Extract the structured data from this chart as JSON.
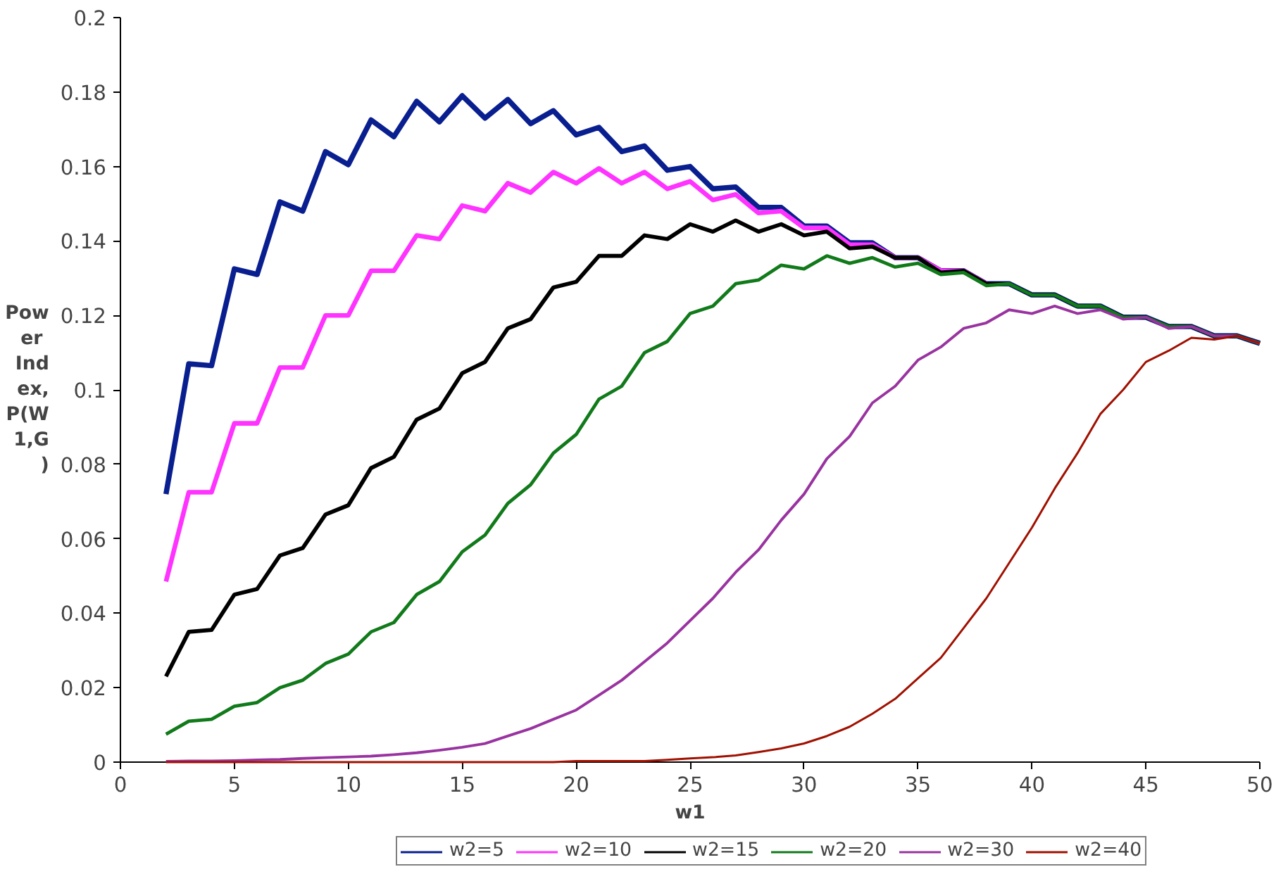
{
  "chart_data": {
    "type": "line",
    "xlabel": "w1",
    "ylabel": "Power Index, P(W1,G)",
    "x": [
      2,
      3,
      4,
      5,
      6,
      7,
      8,
      9,
      10,
      11,
      12,
      13,
      14,
      15,
      16,
      17,
      18,
      19,
      20,
      21,
      22,
      23,
      24,
      25,
      26,
      27,
      28,
      29,
      30,
      31,
      32,
      33,
      34,
      35,
      36,
      37,
      38,
      39,
      40,
      41,
      42,
      43,
      44,
      45,
      46,
      47,
      48,
      49,
      50
    ],
    "series": [
      {
        "name": "w2=5",
        "color": "#0a1f8f",
        "values": [
          0.072,
          0.107,
          0.1065,
          0.1325,
          0.131,
          0.1505,
          0.148,
          0.164,
          0.1605,
          0.1725,
          0.168,
          0.1775,
          0.172,
          0.179,
          0.173,
          0.178,
          0.1715,
          0.175,
          0.1685,
          0.1705,
          0.164,
          0.1655,
          0.159,
          0.16,
          0.154,
          0.1545,
          0.149,
          0.149,
          0.144,
          0.144,
          0.1395,
          0.1395,
          0.1355,
          0.1355,
          0.132,
          0.132,
          0.1285,
          0.1285,
          0.1255,
          0.1255,
          0.1225,
          0.1225,
          0.1195,
          0.1195,
          0.117,
          0.117,
          0.1145,
          0.1145,
          0.1125
        ]
      },
      {
        "name": "w2=10",
        "color": "#ff33ff",
        "values": [
          0.0485,
          0.0725,
          0.0725,
          0.091,
          0.091,
          0.106,
          0.106,
          0.12,
          0.12,
          0.132,
          0.132,
          0.1415,
          0.1405,
          0.1495,
          0.148,
          0.1555,
          0.153,
          0.1585,
          0.1555,
          0.1595,
          0.1555,
          0.1585,
          0.154,
          0.156,
          0.151,
          0.1525,
          0.1475,
          0.148,
          0.1435,
          0.1435,
          0.139,
          0.139,
          0.1355,
          0.1355,
          0.132,
          0.132,
          0.1285,
          null,
          null,
          null,
          null,
          null,
          null,
          null,
          null,
          null,
          null,
          null,
          null
        ]
      },
      {
        "name": "w2=15",
        "color": "#000000",
        "values": [
          0.023,
          0.035,
          0.0355,
          0.045,
          0.0465,
          0.0555,
          0.0575,
          0.0665,
          0.069,
          0.079,
          0.082,
          0.092,
          0.095,
          0.1045,
          0.1075,
          0.1165,
          0.119,
          0.1275,
          0.129,
          0.136,
          0.136,
          0.1415,
          0.1405,
          0.1445,
          0.1425,
          0.1455,
          0.1425,
          0.1445,
          0.1415,
          0.1425,
          0.138,
          0.1385,
          0.1355,
          0.1355,
          0.1315,
          0.132,
          0.1285,
          0.1285,
          0.1255,
          0.1255,
          0.1225,
          0.1225,
          0.1195,
          0.1195,
          0.117,
          0.117,
          0.1145,
          0.1145,
          0.1125
        ]
      },
      {
        "name": "w2=20",
        "color": "#117a1a",
        "values": [
          0.0075,
          0.011,
          0.0115,
          0.015,
          0.016,
          0.02,
          0.022,
          0.0265,
          0.029,
          0.035,
          0.0375,
          0.045,
          0.0485,
          0.0565,
          0.061,
          0.0695,
          0.0745,
          0.083,
          0.088,
          0.0975,
          0.101,
          0.11,
          0.113,
          0.1205,
          0.1225,
          0.1285,
          0.1295,
          0.1335,
          0.1325,
          0.136,
          0.134,
          0.1355,
          0.133,
          0.134,
          0.131,
          0.1315,
          0.128,
          0.1285,
          0.1255,
          0.1255,
          0.1225,
          0.1225,
          0.1195,
          0.1195,
          0.117,
          0.117,
          0.1145,
          0.1145,
          0.1125
        ]
      },
      {
        "name": "w2=30",
        "color": "#9933a0",
        "values": [
          0.0002,
          0.0003,
          0.0003,
          0.0004,
          0.0006,
          0.0007,
          0.001,
          0.0012,
          0.0014,
          0.0016,
          0.002,
          0.0025,
          0.0032,
          0.004,
          0.005,
          0.007,
          0.009,
          0.0115,
          0.014,
          0.018,
          0.022,
          0.027,
          0.032,
          0.038,
          0.044,
          0.051,
          0.057,
          0.065,
          0.072,
          0.0815,
          0.0875,
          0.0965,
          0.101,
          0.108,
          0.1115,
          0.1165,
          0.118,
          0.1215,
          0.1205,
          0.1225,
          0.1205,
          0.1215,
          0.119,
          0.1195,
          0.1165,
          0.117,
          0.1145,
          0.1145,
          0.1125
        ]
      },
      {
        "name": "w2=40",
        "color": "#a01000",
        "values": [
          0,
          0,
          0,
          0,
          0,
          0,
          0,
          0,
          0,
          0,
          0,
          0,
          0,
          0,
          0,
          0,
          0,
          0,
          0.0003,
          0.0003,
          0.0003,
          0.0003,
          0.0006,
          0.001,
          0.0013,
          0.0018,
          0.0027,
          0.0037,
          0.005,
          0.007,
          0.0095,
          0.013,
          0.017,
          0.0225,
          0.028,
          0.036,
          0.044,
          0.0535,
          0.063,
          0.0735,
          0.083,
          0.0935,
          0.1,
          0.1075,
          0.1105,
          0.114,
          0.1135,
          0.1145,
          0.1125
        ]
      }
    ],
    "xlim": [
      0,
      50
    ],
    "ylim": [
      0,
      0.2
    ],
    "xticks": [
      0,
      5,
      10,
      15,
      20,
      25,
      30,
      35,
      40,
      45,
      50
    ],
    "yticks": [
      0,
      0.02,
      0.04,
      0.06,
      0.08,
      0.1,
      0.12,
      0.14,
      0.16,
      0.18,
      0.2
    ],
    "grid": false,
    "legend": "bottom",
    "marker": "none",
    "line_style": "solid"
  }
}
